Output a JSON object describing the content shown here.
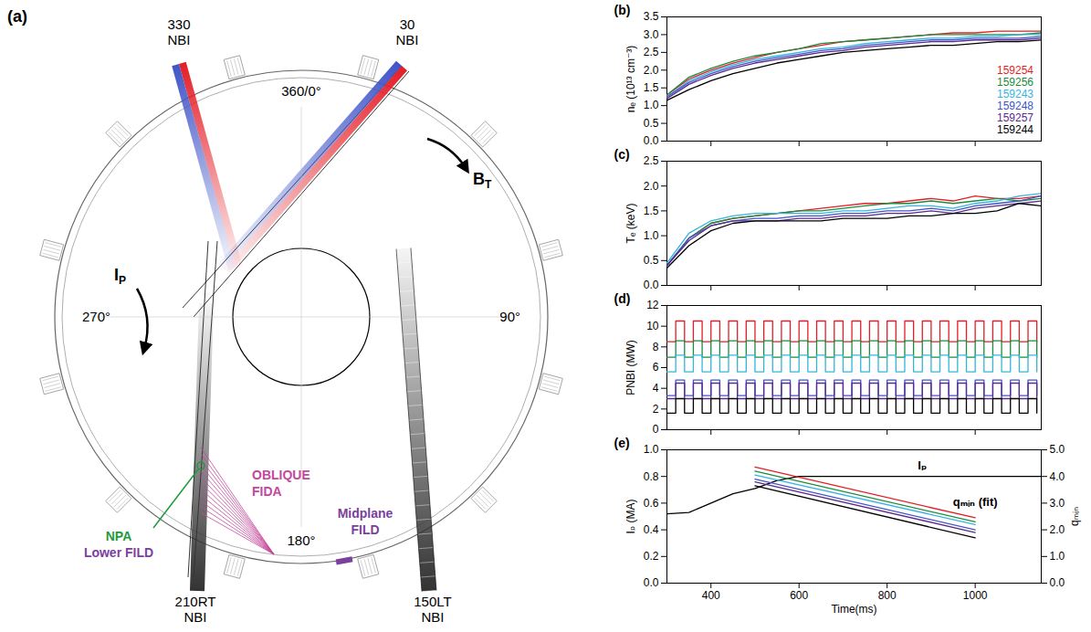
{
  "diagram": {
    "label": "(a)",
    "angles": {
      "top": "360/0°",
      "right": "90°",
      "bottom": "180°",
      "left": "270°"
    },
    "beams": [
      {
        "name": [
          "330",
          "NBI"
        ],
        "colors": [
          "#e41e26",
          "#4055c8"
        ]
      },
      {
        "name": [
          "30",
          "NBI"
        ],
        "colors": [
          "#e41e26",
          "#4055c8"
        ]
      },
      {
        "name": [
          "210RT",
          "NBI"
        ],
        "colors": [
          "#333333"
        ]
      },
      {
        "name": [
          "150LT",
          "NBI"
        ],
        "colors": [
          "#333333"
        ]
      }
    ],
    "currents": [
      {
        "text": "I",
        "sub": "P"
      },
      {
        "text": "B",
        "sub": "T"
      }
    ],
    "diagnostics": [
      {
        "lines": [
          "OBLIQUE",
          "FIDA"
        ],
        "color": "#c4479c"
      },
      {
        "lines": [
          "Midplane",
          "FILD"
        ],
        "color": "#7b3f9e"
      },
      {
        "lines": [
          "NPA"
        ],
        "color": "#1f9a3c"
      },
      {
        "lines": [
          "Lower FILD"
        ],
        "color": "#7b3f9e"
      }
    ]
  },
  "chart_data": [
    {
      "type": "line",
      "title": "(b)",
      "y_label": "nₑ (10¹³ cm⁻³)",
      "tick_labels": "y",
      "legend": "lower right",
      "xlim": [
        300,
        1150
      ],
      "xticks": [
        400,
        600,
        800,
        1000
      ],
      "ylim": [
        0,
        3.5
      ],
      "yticks": [
        {
          "value": 0,
          "label": "0.0"
        },
        0.5,
        {
          "value": 1,
          "label": "1.0"
        },
        1.5,
        {
          "value": 2,
          "label": "2.0"
        },
        2.5,
        {
          "value": 3,
          "label": "3.0"
        },
        3.5
      ],
      "x": [
        300,
        350,
        400,
        450,
        500,
        550,
        600,
        650,
        700,
        750,
        800,
        850,
        900,
        950,
        1000,
        1050,
        1100,
        1150
      ],
      "series": [
        {
          "name": "159254",
          "color": "#e41e26",
          "values": [
            1.3,
            1.75,
            2.0,
            2.2,
            2.35,
            2.5,
            2.6,
            2.7,
            2.8,
            2.85,
            2.9,
            2.95,
            3.0,
            3.05,
            3.05,
            3.1,
            3.1,
            3.1
          ]
        },
        {
          "name": "159256",
          "color": "#1b8c3c",
          "values": [
            1.3,
            1.8,
            2.05,
            2.25,
            2.4,
            2.5,
            2.6,
            2.75,
            2.8,
            2.85,
            2.9,
            2.95,
            3.0,
            3.0,
            3.0,
            3.0,
            3.0,
            3.05
          ]
        },
        {
          "name": "159243",
          "color": "#33b5e0",
          "values": [
            1.25,
            1.7,
            1.95,
            2.15,
            2.3,
            2.4,
            2.5,
            2.6,
            2.65,
            2.75,
            2.8,
            2.85,
            2.9,
            2.9,
            2.95,
            2.95,
            3.0,
            3.0
          ]
        },
        {
          "name": "159248",
          "color": "#4055c8",
          "values": [
            1.25,
            1.65,
            1.9,
            2.1,
            2.25,
            2.35,
            2.45,
            2.55,
            2.6,
            2.7,
            2.75,
            2.8,
            2.85,
            2.85,
            2.9,
            2.9,
            2.9,
            2.95
          ]
        },
        {
          "name": "159257",
          "color": "#5b2a8c",
          "values": [
            1.2,
            1.6,
            1.85,
            2.05,
            2.2,
            2.3,
            2.4,
            2.5,
            2.55,
            2.65,
            2.7,
            2.75,
            2.8,
            2.8,
            2.85,
            2.85,
            2.85,
            2.9
          ]
        },
        {
          "name": "159244",
          "color": "#000000",
          "values": [
            1.15,
            1.45,
            1.7,
            1.9,
            2.05,
            2.2,
            2.3,
            2.4,
            2.5,
            2.55,
            2.6,
            2.65,
            2.7,
            2.7,
            2.75,
            2.8,
            2.8,
            2.85
          ]
        }
      ]
    },
    {
      "type": "line",
      "title": "(c)",
      "y_label": "Tₑ (keV)",
      "tick_labels": "y",
      "xlim": [
        300,
        1150
      ],
      "xticks": [
        400,
        600,
        800,
        1000
      ],
      "ylim": [
        0,
        2.5
      ],
      "yticks": [
        {
          "value": 0,
          "label": "0.0"
        },
        0.5,
        {
          "value": 1,
          "label": "1.0"
        },
        1.5,
        {
          "value": 2,
          "label": "2.0"
        },
        2.5
      ],
      "x": [
        300,
        350,
        400,
        450,
        500,
        550,
        600,
        650,
        700,
        750,
        800,
        850,
        900,
        950,
        1000,
        1050,
        1100,
        1150
      ],
      "series": [
        {
          "color": "#e41e26",
          "values": [
            0.4,
            0.95,
            1.25,
            1.35,
            1.4,
            1.45,
            1.5,
            1.55,
            1.6,
            1.65,
            1.65,
            1.7,
            1.75,
            1.7,
            1.8,
            1.75,
            1.75,
            1.8
          ]
        },
        {
          "color": "#1b8c3c",
          "values": [
            0.4,
            0.95,
            1.25,
            1.35,
            1.4,
            1.45,
            1.5,
            1.5,
            1.55,
            1.6,
            1.65,
            1.65,
            1.7,
            1.65,
            1.7,
            1.75,
            1.7,
            1.75
          ]
        },
        {
          "color": "#33b5e0",
          "values": [
            0.45,
            1.05,
            1.3,
            1.4,
            1.45,
            1.45,
            1.45,
            1.45,
            1.5,
            1.5,
            1.55,
            1.6,
            1.6,
            1.55,
            1.65,
            1.7,
            1.8,
            1.85
          ]
        },
        {
          "color": "#4055c8",
          "values": [
            0.4,
            0.95,
            1.2,
            1.3,
            1.35,
            1.35,
            1.4,
            1.4,
            1.45,
            1.45,
            1.5,
            1.5,
            1.55,
            1.5,
            1.6,
            1.65,
            1.7,
            1.8
          ]
        },
        {
          "color": "#5b2a8c",
          "values": [
            0.4,
            0.9,
            1.2,
            1.3,
            1.3,
            1.3,
            1.35,
            1.35,
            1.4,
            1.4,
            1.45,
            1.45,
            1.5,
            1.45,
            1.55,
            1.6,
            1.65,
            1.7
          ]
        },
        {
          "color": "#000000",
          "values": [
            0.35,
            0.8,
            1.1,
            1.25,
            1.3,
            1.3,
            1.3,
            1.3,
            1.35,
            1.35,
            1.35,
            1.4,
            1.4,
            1.45,
            1.45,
            1.5,
            1.65,
            1.6
          ]
        }
      ]
    },
    {
      "type": "line",
      "title": "(d)",
      "y_label": "PNBI (MW)",
      "tick_labels": "y",
      "line_style": "step",
      "xlim": [
        300,
        1150
      ],
      "xticks": [
        400,
        600,
        800,
        1000
      ],
      "ylim": [
        0,
        12
      ],
      "yticks": [
        0,
        2,
        4,
        6,
        8,
        10,
        12
      ],
      "x": [
        300,
        320,
        340,
        360,
        380,
        400,
        420,
        440,
        460,
        480,
        500,
        520,
        540,
        560,
        580,
        600,
        620,
        640,
        660,
        680,
        700,
        720,
        740,
        760,
        780,
        800,
        820,
        840,
        860,
        880,
        900,
        920,
        940,
        960,
        980,
        1000,
        1020,
        1040,
        1060,
        1080,
        1100,
        1120,
        1140
      ],
      "series": [
        {
          "color": "#e41e26",
          "values": [
            8.5,
            10.5,
            8.5,
            10.5,
            8.5,
            10.5,
            8.5,
            10.5,
            8.5,
            10.5,
            8.5,
            10.5,
            8.5,
            10.5,
            8.5,
            10.5,
            8.5,
            10.5,
            8.5,
            10.5,
            8.5,
            10.5,
            8.5,
            10.5,
            8.5,
            10.5,
            8.5,
            10.5,
            8.5,
            10.5,
            8.5,
            10.5,
            8.5,
            10.5,
            8.5,
            10.5,
            8.5,
            10.5,
            8.5,
            10.5,
            8.5,
            10.5,
            8.5
          ]
        },
        {
          "color": "#1b8c3c",
          "values": [
            7.0,
            8.6,
            7.0,
            8.6,
            7.0,
            8.6,
            7.0,
            8.6,
            7.0,
            8.6,
            7.0,
            8.6,
            7.0,
            8.6,
            7.0,
            8.6,
            7.0,
            8.6,
            7.0,
            8.6,
            7.0,
            8.6,
            7.0,
            8.6,
            7.0,
            8.6,
            7.0,
            8.6,
            7.0,
            8.6,
            7.0,
            8.6,
            7.0,
            8.6,
            7.0,
            8.6,
            7.0,
            8.6,
            7.0,
            8.6,
            7.0,
            8.6,
            7.0
          ]
        },
        {
          "color": "#33b5e0",
          "values": [
            5.6,
            7.2,
            5.6,
            7.2,
            5.6,
            7.2,
            5.6,
            7.2,
            5.6,
            7.2,
            5.6,
            7.2,
            5.6,
            7.2,
            5.6,
            7.2,
            5.6,
            7.2,
            5.6,
            7.2,
            5.6,
            7.2,
            5.6,
            7.2,
            5.6,
            7.2,
            5.6,
            7.2,
            5.6,
            7.2,
            5.6,
            7.2,
            5.6,
            7.2,
            5.6,
            7.2,
            5.6,
            7.2,
            5.6,
            7.2,
            5.6,
            7.2,
            5.6
          ]
        },
        {
          "color": "#4055c8",
          "values": [
            3.3,
            4.8,
            3.3,
            4.8,
            3.3,
            4.8,
            3.3,
            4.8,
            3.3,
            4.8,
            3.3,
            4.8,
            3.3,
            4.8,
            3.3,
            4.8,
            3.3,
            4.8,
            3.3,
            4.8,
            3.3,
            4.8,
            3.3,
            4.8,
            3.3,
            4.8,
            3.3,
            4.8,
            3.3,
            4.8,
            3.3,
            4.8,
            3.3,
            4.8,
            3.3,
            4.8,
            3.3,
            4.8,
            3.3,
            4.8,
            3.3,
            4.8,
            3.3
          ]
        },
        {
          "color": "#5b2a8c",
          "values": [
            3.0,
            4.5,
            3.0,
            4.5,
            3.0,
            4.5,
            3.0,
            4.5,
            3.0,
            4.5,
            3.0,
            4.5,
            3.0,
            4.5,
            3.0,
            4.5,
            3.0,
            4.5,
            3.0,
            4.5,
            3.0,
            4.5,
            3.0,
            4.5,
            3.0,
            4.5,
            3.0,
            4.5,
            3.0,
            4.5,
            3.0,
            4.5,
            3.0,
            4.5,
            3.0,
            4.5,
            3.0,
            4.5,
            3.0,
            4.5,
            3.0,
            4.5,
            3.0
          ]
        },
        {
          "color": "#000000",
          "values": [
            1.6,
            3.0,
            1.6,
            3.0,
            1.6,
            3.0,
            1.6,
            3.0,
            1.6,
            3.0,
            1.6,
            3.0,
            1.6,
            3.0,
            1.6,
            3.0,
            1.6,
            3.0,
            1.6,
            3.0,
            1.6,
            3.0,
            1.6,
            3.0,
            1.6,
            3.0,
            1.6,
            3.0,
            1.6,
            3.0,
            1.6,
            3.0,
            1.6,
            3.0,
            1.6,
            3.0,
            1.6,
            3.0,
            1.6,
            3.0,
            1.6,
            3.0,
            1.6
          ]
        }
      ]
    },
    {
      "type": "line",
      "title": "(e)",
      "x_label": "Time(ms)",
      "y_label": "Iₚ (MA)",
      "y2_label": "qₘᵢₙ",
      "xlim": [
        300,
        1150
      ],
      "xticks": [
        400,
        600,
        800,
        1000
      ],
      "ylim": [
        0,
        1
      ],
      "yticks": [
        {
          "value": 0,
          "label": "0.0"
        },
        0.2,
        0.4,
        0.6,
        0.8,
        {
          "value": 1,
          "label": "1.0"
        }
      ],
      "y2lim": [
        0,
        5
      ],
      "y2ticks": [
        {
          "value": 0,
          "label": "0.0"
        },
        {
          "value": 1,
          "label": "1.0"
        },
        {
          "value": 2,
          "label": "2.0"
        },
        {
          "value": 3,
          "label": "3.0"
        },
        {
          "value": 4,
          "label": "4.0"
        },
        {
          "value": 5,
          "label": "5.0"
        }
      ],
      "x": [
        300,
        350,
        400,
        450,
        500,
        550,
        600,
        650,
        700,
        750,
        800,
        850,
        900,
        950,
        1000,
        1050,
        1100,
        1150
      ],
      "series": [
        {
          "color": "#000000",
          "values": [
            0.52,
            0.53,
            0.6,
            0.67,
            0.71,
            0.77,
            0.8,
            0.8,
            0.8,
            0.8,
            0.8,
            0.8,
            0.8,
            0.8,
            0.8,
            0.8,
            0.8,
            0.8
          ]
        },
        {
          "color": "#e41e26",
          "axis": "y2",
          "x": [
            500,
            1000
          ],
          "values": [
            4.35,
            2.45
          ]
        },
        {
          "color": "#1b8c3c",
          "axis": "y2",
          "x": [
            500,
            1000
          ],
          "values": [
            4.2,
            2.3
          ]
        },
        {
          "color": "#33b5e0",
          "axis": "y2",
          "x": [
            500,
            1000
          ],
          "values": [
            4.05,
            2.2
          ]
        },
        {
          "color": "#4055c8",
          "axis": "y2",
          "x": [
            500,
            1000
          ],
          "values": [
            3.9,
            2.0
          ]
        },
        {
          "color": "#5b2a8c",
          "axis": "y2",
          "x": [
            500,
            1000
          ],
          "values": [
            3.8,
            1.9
          ]
        },
        {
          "color": "#000000",
          "axis": "y2",
          "x": [
            500,
            1000
          ],
          "values": [
            3.65,
            1.7
          ]
        }
      ],
      "annotations": [
        {
          "text": "Iₚ",
          "x": 880,
          "y": 0.88
        },
        {
          "text": "qₘᵢₙ (fit)",
          "x": 1000,
          "y": 3.05,
          "axis": "y2"
        }
      ]
    }
  ]
}
